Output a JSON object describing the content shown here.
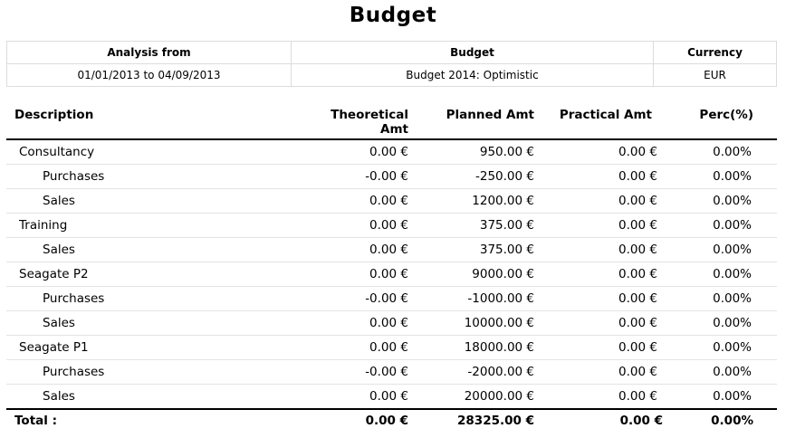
{
  "title": "Budget",
  "info": {
    "headers": [
      "Analysis from",
      "Budget",
      "Currency"
    ],
    "values": [
      "01/01/2013 to 04/09/2013",
      "Budget 2014: Optimistic",
      "EUR"
    ]
  },
  "columns": {
    "description": "Description",
    "theoretical_line1": "Theoretical",
    "theoretical_line2": "Amt",
    "planned": "Planned Amt",
    "practical": "Practical Amt",
    "perc": "Perc(%)"
  },
  "rows": [
    {
      "level": 0,
      "description": "Consultancy",
      "theoretical": "0.00 €",
      "planned": "950.00 €",
      "practical": "0.00 €",
      "perc": "0.00%"
    },
    {
      "level": 1,
      "description": "Purchases",
      "theoretical": "-0.00 €",
      "planned": "-250.00 €",
      "practical": "0.00 €",
      "perc": "0.00%"
    },
    {
      "level": 1,
      "description": "Sales",
      "theoretical": "0.00 €",
      "planned": "1200.00 €",
      "practical": "0.00 €",
      "perc": "0.00%"
    },
    {
      "level": 0,
      "description": "Training",
      "theoretical": "0.00 €",
      "planned": "375.00 €",
      "practical": "0.00 €",
      "perc": "0.00%"
    },
    {
      "level": 1,
      "description": "Sales",
      "theoretical": "0.00 €",
      "planned": "375.00 €",
      "practical": "0.00 €",
      "perc": "0.00%"
    },
    {
      "level": 0,
      "description": "Seagate P2",
      "theoretical": "0.00 €",
      "planned": "9000.00 €",
      "practical": "0.00 €",
      "perc": "0.00%"
    },
    {
      "level": 1,
      "description": "Purchases",
      "theoretical": "-0.00 €",
      "planned": "-1000.00 €",
      "practical": "0.00 €",
      "perc": "0.00%"
    },
    {
      "level": 1,
      "description": "Sales",
      "theoretical": "0.00 €",
      "planned": "10000.00 €",
      "practical": "0.00 €",
      "perc": "0.00%"
    },
    {
      "level": 0,
      "description": "Seagate P1",
      "theoretical": "0.00 €",
      "planned": "18000.00 €",
      "practical": "0.00 €",
      "perc": "0.00%"
    },
    {
      "level": 1,
      "description": "Purchases",
      "theoretical": "-0.00 €",
      "planned": "-2000.00 €",
      "practical": "0.00 €",
      "perc": "0.00%"
    },
    {
      "level": 1,
      "description": "Sales",
      "theoretical": "0.00 €",
      "planned": "20000.00 €",
      "practical": "0.00 €",
      "perc": "0.00%"
    }
  ],
  "total": {
    "label": "Total :",
    "theoretical": "0.00 €",
    "planned": "28325.00 €",
    "practical": "0.00 €",
    "perc": "0.00%"
  }
}
